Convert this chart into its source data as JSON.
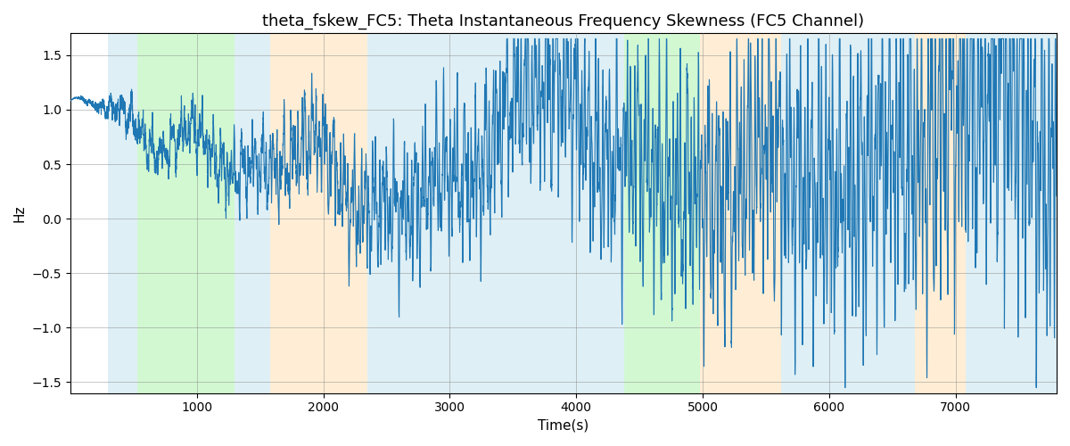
{
  "title": "theta_fskew_FC5: Theta Instantaneous Frequency Skewness (FC5 Channel)",
  "xlabel": "Time(s)",
  "ylabel": "Hz",
  "xlim": [
    0,
    7800
  ],
  "ylim": [
    -1.6,
    1.7
  ],
  "line_color": "#1f77b4",
  "line_width": 0.8,
  "bg_color": "#ffffff",
  "figsize": [
    12,
    5
  ],
  "dpi": 100,
  "title_fontsize": 13,
  "label_fontsize": 11,
  "regions": [
    {
      "xstart": 300,
      "xend": 530,
      "color": "#add8e6",
      "alpha": 0.4
    },
    {
      "xstart": 530,
      "xend": 1300,
      "color": "#90ee90",
      "alpha": 0.4
    },
    {
      "xstart": 1300,
      "xend": 1580,
      "color": "#add8e6",
      "alpha": 0.4
    },
    {
      "xstart": 1580,
      "xend": 2350,
      "color": "#ffdead",
      "alpha": 0.5
    },
    {
      "xstart": 2350,
      "xend": 4100,
      "color": "#add8e6",
      "alpha": 0.4
    },
    {
      "xstart": 4100,
      "xend": 4380,
      "color": "#add8e6",
      "alpha": 0.4
    },
    {
      "xstart": 4380,
      "xend": 4980,
      "color": "#90ee90",
      "alpha": 0.4
    },
    {
      "xstart": 4980,
      "xend": 5620,
      "color": "#ffdead",
      "alpha": 0.5
    },
    {
      "xstart": 5620,
      "xend": 6680,
      "color": "#add8e6",
      "alpha": 0.4
    },
    {
      "xstart": 6680,
      "xend": 7080,
      "color": "#ffdead",
      "alpha": 0.5
    },
    {
      "xstart": 7080,
      "xend": 7800,
      "color": "#add8e6",
      "alpha": 0.4
    }
  ],
  "xticks": [
    1000,
    2000,
    3000,
    4000,
    5000,
    6000,
    7000
  ],
  "yticks": [
    -1.5,
    -1.0,
    -0.5,
    0.0,
    0.5,
    1.0,
    1.5
  ],
  "seed": 12345
}
